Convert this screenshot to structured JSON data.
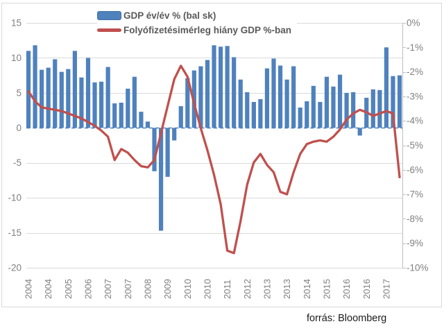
{
  "legend": {
    "gdp_label": "GDP év/év % (bal sk)",
    "ca_label": "Folyófizetésimérleg hiány GDP %-ban"
  },
  "source": "forrás: Bloomberg",
  "colors": {
    "bar_blue": "#4f81bd",
    "bar_border": "#3c6da8",
    "line_red": "#c0504d",
    "grid": "#d9d9d9",
    "frame": "#d9d9d9",
    "axis_line": "#bfbfbf",
    "axis_text": "#7f7f7f",
    "legend_text": "#595959",
    "source_text": "#1a1a1a",
    "zero_line": "#4f81bd"
  },
  "chart_data": {
    "type": "combo",
    "x": [
      "2004Q1",
      "2004Q2",
      "2004Q3",
      "2004Q4",
      "2005Q1",
      "2005Q2",
      "2005Q3",
      "2005Q4",
      "2006Q1",
      "2006Q2",
      "2006Q3",
      "2006Q4",
      "2007Q1",
      "2007Q2",
      "2007Q3",
      "2007Q4",
      "2008Q1",
      "2008Q2",
      "2008Q3",
      "2008Q4",
      "2009Q1",
      "2009Q2",
      "2009Q3",
      "2009Q4",
      "2010Q1",
      "2010Q2",
      "2010Q3",
      "2010Q4",
      "2011Q1",
      "2011Q2",
      "2011Q3",
      "2011Q4",
      "2012Q1",
      "2012Q2",
      "2012Q3",
      "2012Q4",
      "2013Q1",
      "2013Q2",
      "2013Q3",
      "2013Q4",
      "2014Q1",
      "2014Q2",
      "2014Q3",
      "2014Q4",
      "2015Q1",
      "2015Q2",
      "2015Q3",
      "2015Q4",
      "2016Q1",
      "2016Q2",
      "2016Q3",
      "2016Q4",
      "2017Q1",
      "2017Q2",
      "2017Q3",
      "2017Q4",
      "2018Q1"
    ],
    "x_tick_every": 3,
    "x_tick_labels": [
      "2004",
      "2004",
      "2005",
      "2006",
      "2007",
      "2007",
      "2008",
      "2009",
      "2010",
      "2010",
      "2011",
      "2012",
      "2013",
      "2013",
      "2014",
      "2015",
      "2016",
      "2016",
      "2017"
    ],
    "series": [
      {
        "name": "GDP év/év % (bal sk)",
        "type": "bar",
        "axis": "left",
        "color": "#4f81bd",
        "values": [
          11.0,
          11.8,
          8.3,
          8.6,
          9.8,
          8.0,
          8.4,
          11.0,
          7.2,
          10.0,
          6.5,
          6.6,
          8.7,
          3.5,
          3.6,
          5.6,
          7.3,
          2.3,
          0.9,
          -6.2,
          -14.7,
          -7.0,
          -1.8,
          3.1,
          7.1,
          8.2,
          8.8,
          9.7,
          11.8,
          11.6,
          11.7,
          10.1,
          6.9,
          5.1,
          3.7,
          4.1,
          8.5,
          9.9,
          8.9,
          6.9,
          8.8,
          2.9,
          3.8,
          6.0,
          3.7,
          7.3,
          5.9,
          7.6,
          5.0,
          5.1,
          -1.1,
          4.3,
          5.5,
          5.4,
          11.5,
          7.4,
          7.5
        ]
      },
      {
        "name": "Folyófizetésimérleg hiány GDP %-ban",
        "type": "line",
        "axis": "right",
        "color": "#c0504d",
        "values": [
          -2.8,
          -3.2,
          -3.45,
          -3.5,
          -3.55,
          -3.6,
          -3.7,
          -3.8,
          -3.9,
          -4.05,
          -4.2,
          -4.4,
          -4.65,
          -5.6,
          -5.15,
          -5.3,
          -5.6,
          -5.85,
          -5.9,
          -5.6,
          -4.5,
          -3.4,
          -2.3,
          -1.75,
          -2.2,
          -3.3,
          -4.3,
          -5.2,
          -6.2,
          -7.4,
          -9.3,
          -9.4,
          -8.1,
          -6.6,
          -5.7,
          -5.35,
          -5.8,
          -6.1,
          -6.9,
          -7.0,
          -6.1,
          -5.35,
          -4.95,
          -4.85,
          -4.8,
          -4.85,
          -4.65,
          -4.35,
          -3.95,
          -3.7,
          -3.55,
          -3.65,
          -3.8,
          -3.7,
          -3.6,
          -3.7,
          -6.3
        ]
      }
    ],
    "left_axis": {
      "min": -20,
      "max": 15,
      "tick_values": [
        15,
        10,
        5,
        0,
        -5,
        -10,
        -15,
        -20
      ],
      "ticks": [
        "15",
        "10",
        "5",
        "0",
        "-5",
        "-10",
        "-15",
        "-20"
      ]
    },
    "right_axis": {
      "min": -10,
      "max": 0,
      "tick_values": [
        0,
        -1,
        -2,
        -3,
        -4,
        -5,
        -6,
        -7,
        -8,
        -9,
        -10
      ],
      "ticks": [
        "0%",
        "-1%",
        "-2%",
        "-3%",
        "-4%",
        "-5%",
        "-6%",
        "-7%",
        "-8%",
        "-9%",
        "-10%"
      ]
    },
    "grid": "on",
    "legend_position": "top",
    "title": ""
  }
}
